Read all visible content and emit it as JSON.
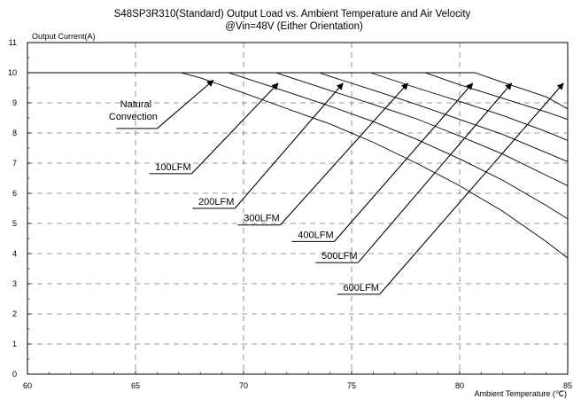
{
  "chart_data": {
    "type": "line",
    "title": "S48SP3R310(Standard)  Output Load vs. Ambient Temperature and Air Velocity",
    "subtitle": "@Vin=48V (Either Orientation)",
    "xlabel": "Ambient Temperature (℃)",
    "ylabel": "Output Current(A)",
    "xlim": [
      60,
      85
    ],
    "ylim": [
      0,
      11
    ],
    "x_ticks": [
      "60",
      "65",
      "70",
      "75",
      "80",
      "85"
    ],
    "y_ticks": [
      "0",
      "1",
      "2",
      "3",
      "4",
      "5",
      "6",
      "7",
      "8",
      "9",
      "10",
      "11"
    ],
    "grid": true,
    "series": [
      {
        "name": "Natural Convection",
        "x": [
          60,
          67.1,
          68,
          70,
          72,
          74,
          76,
          78,
          80,
          82,
          84,
          85
        ],
        "values": [
          10,
          10,
          9.83,
          9.33,
          8.81,
          8.3,
          7.69,
          7.0,
          6.25,
          5.4,
          4.4,
          3.85
        ]
      },
      {
        "name": "100LFM",
        "x": [
          60,
          69.3,
          70,
          72,
          74,
          76,
          78,
          80,
          82,
          84,
          85
        ],
        "values": [
          10,
          10,
          9.84,
          9.37,
          8.89,
          8.38,
          7.79,
          7.14,
          6.43,
          5.6,
          5.15
        ]
      },
      {
        "name": "200LFM",
        "x": [
          60,
          71.5,
          72,
          74,
          76,
          78,
          80,
          82,
          84,
          85
        ],
        "values": [
          10,
          10,
          9.88,
          9.41,
          8.95,
          8.47,
          7.9,
          7.3,
          6.6,
          6.25
        ]
      },
      {
        "name": "300LFM",
        "x": [
          60,
          73.5,
          74,
          76,
          78,
          80,
          82,
          84,
          85
        ],
        "values": [
          10,
          10,
          9.88,
          9.42,
          8.95,
          8.45,
          7.95,
          7.35,
          7.05
        ]
      },
      {
        "name": "400LFM",
        "x": [
          60,
          75.9,
          76,
          78,
          80,
          82,
          84,
          85
        ],
        "values": [
          10,
          10,
          9.97,
          9.5,
          9.05,
          8.58,
          8.05,
          7.75
        ]
      },
      {
        "name": "500LFM",
        "x": [
          60,
          78.4,
          80,
          82,
          84,
          85
        ],
        "values": [
          10,
          10,
          9.6,
          9.15,
          8.7,
          8.45
        ]
      },
      {
        "name": "600LFM",
        "x": [
          60,
          80.7,
          82,
          84,
          85
        ],
        "values": [
          10,
          10,
          9.68,
          9.2,
          8.8
        ]
      }
    ],
    "annotations": [
      {
        "lines": [
          "Natural",
          "Convection"
        ],
        "label_x": 66.0,
        "label_y": 8.15,
        "arrow_to": [
          68.6,
          9.75
        ]
      },
      {
        "lines": [
          "100LFM"
        ],
        "label_x": 67.6,
        "label_y": 6.65,
        "arrow_to": [
          71.6,
          9.65
        ]
      },
      {
        "lines": [
          "200LFM"
        ],
        "label_x": 69.6,
        "label_y": 5.5,
        "arrow_to": [
          74.6,
          9.65
        ]
      },
      {
        "lines": [
          "300LFM"
        ],
        "label_x": 71.7,
        "label_y": 4.95,
        "arrow_to": [
          77.6,
          9.65
        ]
      },
      {
        "lines": [
          "400LFM"
        ],
        "label_x": 74.2,
        "label_y": 4.4,
        "arrow_to": [
          80.6,
          9.65
        ]
      },
      {
        "lines": [
          "500LFM"
        ],
        "label_x": 75.3,
        "label_y": 3.7,
        "arrow_to": [
          82.4,
          9.65
        ]
      },
      {
        "lines": [
          "600LFM"
        ],
        "label_x": 76.3,
        "label_y": 2.65,
        "arrow_to": [
          84.8,
          9.65
        ]
      }
    ]
  }
}
